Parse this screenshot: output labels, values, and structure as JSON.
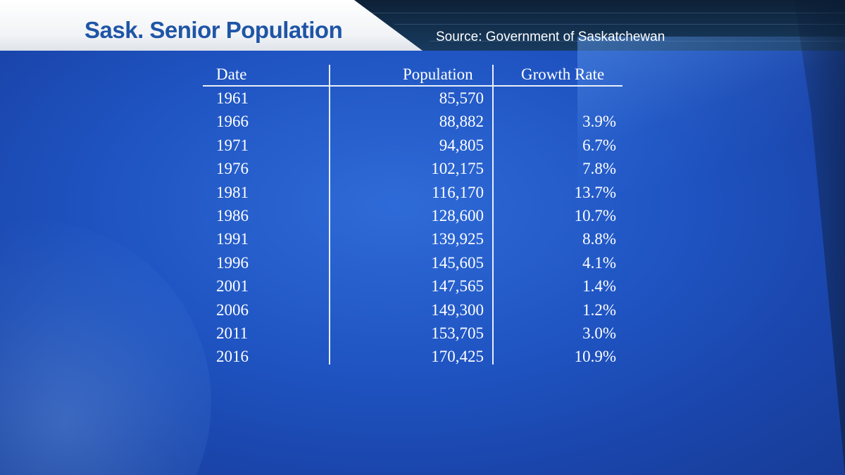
{
  "header": {
    "title": "Sask. Senior Population",
    "source": "Source: Government of Saskatchewan"
  },
  "table": {
    "columns": [
      "Date",
      "Population",
      "Growth Rate"
    ],
    "rows": [
      {
        "date": "1961",
        "population": "85,570",
        "growth": ""
      },
      {
        "date": "1966",
        "population": "88,882",
        "growth": "3.9%"
      },
      {
        "date": "1971",
        "population": "94,805",
        "growth": "6.7%"
      },
      {
        "date": "1976",
        "population": "102,175",
        "growth": "7.8%"
      },
      {
        "date": "1981",
        "population": "116,170",
        "growth": "13.7%"
      },
      {
        "date": "1986",
        "population": "128,600",
        "growth": "10.7%"
      },
      {
        "date": "1991",
        "population": "139,925",
        "growth": "8.8%"
      },
      {
        "date": "1996",
        "population": "145,605",
        "growth": "4.1%"
      },
      {
        "date": "2001",
        "population": "147,565",
        "growth": "1.4%"
      },
      {
        "date": "2006",
        "population": "149,300",
        "growth": "1.2%"
      },
      {
        "date": "2011",
        "population": "153,705",
        "growth": "3.0%"
      },
      {
        "date": "2016",
        "population": "170,425",
        "growth": "10.9%"
      }
    ]
  },
  "colors": {
    "title": "#1f55a6",
    "panel": "#1f54c2",
    "text": "#ffffff"
  }
}
